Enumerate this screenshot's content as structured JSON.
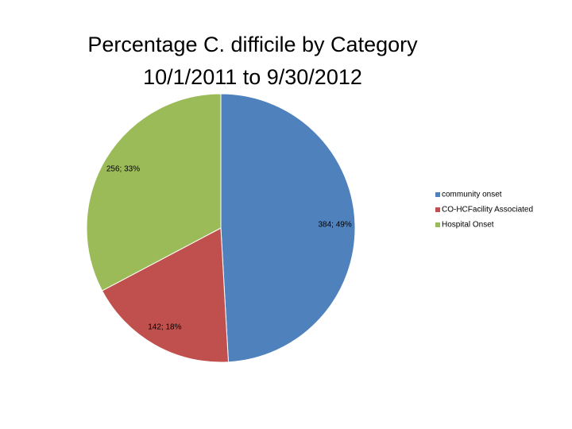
{
  "chart_data": {
    "type": "pie",
    "title": "Percentage C. difficile by Category",
    "subtitle": "10/1/2011 to 9/30/2012",
    "categories": [
      "community onset",
      "CO-HCFacility Associated",
      "Hospital Onset"
    ],
    "values": [
      384,
      142,
      256
    ],
    "value_labels": [
      "384; 49%",
      "142; 18%",
      "256; 33%"
    ],
    "colors": [
      "#4f81bd",
      "#c0504d",
      "#9bbb59"
    ],
    "legend": "right"
  }
}
